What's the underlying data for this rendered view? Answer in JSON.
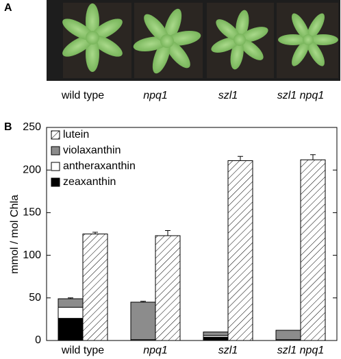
{
  "panel_a": {
    "label": "A",
    "labels": [
      "wild type",
      "npq1",
      "szl1",
      "szl1 npq1"
    ]
  },
  "chart_data": {
    "type": "bar",
    "panel_label": "B",
    "y_label": "mmol / mol Chla",
    "categories": [
      "wild type",
      "npq1",
      "szl1",
      "szl1 npq1"
    ],
    "ylim": [
      0,
      250
    ],
    "yticks": [
      0,
      50,
      100,
      150,
      200,
      250
    ],
    "legend": "upper left",
    "series": [
      {
        "name": "lutein",
        "color": "#ffffff",
        "pattern": "hatch",
        "stack": "lutein",
        "values": [
          125,
          123,
          211,
          212
        ],
        "errors": [
          2,
          6,
          5,
          6
        ]
      },
      {
        "name": "violaxanthin",
        "color": "#8c8c8c",
        "stack": "cycle",
        "values": [
          10,
          44,
          4,
          11
        ],
        "errors": [
          1,
          1,
          null,
          null
        ]
      },
      {
        "name": "antheraxanthin",
        "color": "#ffffff",
        "stack": "cycle",
        "values": [
          13,
          1,
          2,
          1
        ],
        "errors": [
          1,
          null,
          null,
          null
        ]
      },
      {
        "name": "zeaxanthin",
        "color": "#000000",
        "stack": "cycle",
        "values": [
          26,
          0,
          4,
          0
        ],
        "errors": [
          3,
          null,
          1,
          null
        ]
      }
    ]
  }
}
